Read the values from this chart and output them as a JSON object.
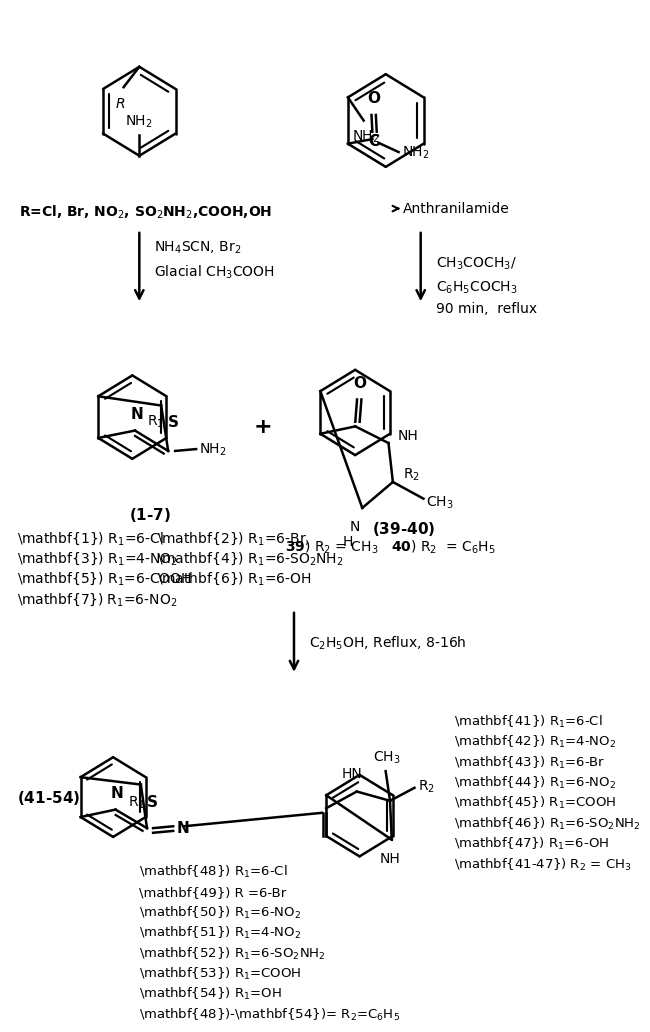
{
  "bg_color": "#ffffff",
  "fig_width": 6.5,
  "fig_height": 10.06,
  "dpi": 100,
  "r_text": "\\mathbf{R}=Cl, Br, NO$_2$, SO$_2$NH$_2$,COOH,OH",
  "compound_17_label": "(\\mathbf{1-7})",
  "compound_17_subs": [
    "\\mathbf{1}) R$_1$=6-Cl",
    "\\mathbf{2}) R$_1$=6-Br,",
    "\\mathbf{3}) R$_1$=4-NO$_2$",
    "\\mathbf{4}) R$_1$=6-SO$_2$NH$_2$",
    "\\mathbf{5}) R$_1$=6-COOH",
    "\\mathbf{6}) R$_1$=6-OH",
    "\\mathbf{7}) R$_1$=6-NO$_2$"
  ],
  "compound_3940_label": "(\\mathbf{39-40})",
  "compound_3940_subs": "\\mathbf{39}) R$_2$ = CH$_3$   \\mathbf{40}) R$_2$  = C$_6$H$_5$",
  "compound_4154_label": "(\\mathbf{41-54})",
  "compound_4154_subs_right": [
    "\\mathbf{41}) R$_1$=6-Cl",
    "\\mathbf{42}) R$_1$=4-NO$_2$",
    "\\mathbf{43}) R$_1$=6-Br",
    "\\mathbf{44}) R$_1$=6-NO$_2$",
    "\\mathbf{45}) R$_1$=COOH",
    "\\mathbf{46}) R$_1$=6-SO$_2$NH$_2$",
    "\\mathbf{47}) R$_1$=6-OH",
    "\\mathbf{41-47}) R$_2$ = CH$_3$"
  ],
  "compound_4854_subs": [
    "\\mathbf{48}) R$_1$=6-Cl",
    "\\mathbf{49}) R =6-Br",
    "\\mathbf{50}) R$_1$=6-NO$_2$",
    "\\mathbf{51}) R$_1$=4-NO$_2$",
    "\\mathbf{52}) R$_1$=6-SO$_2$NH$_2$",
    "\\mathbf{53}) R$_1$=COOH",
    "\\mathbf{54}) R$_1$=OH",
    "\\mathbf{48})-\\mathbf{54})= R$_2$=C$_6$H$_5$"
  ]
}
